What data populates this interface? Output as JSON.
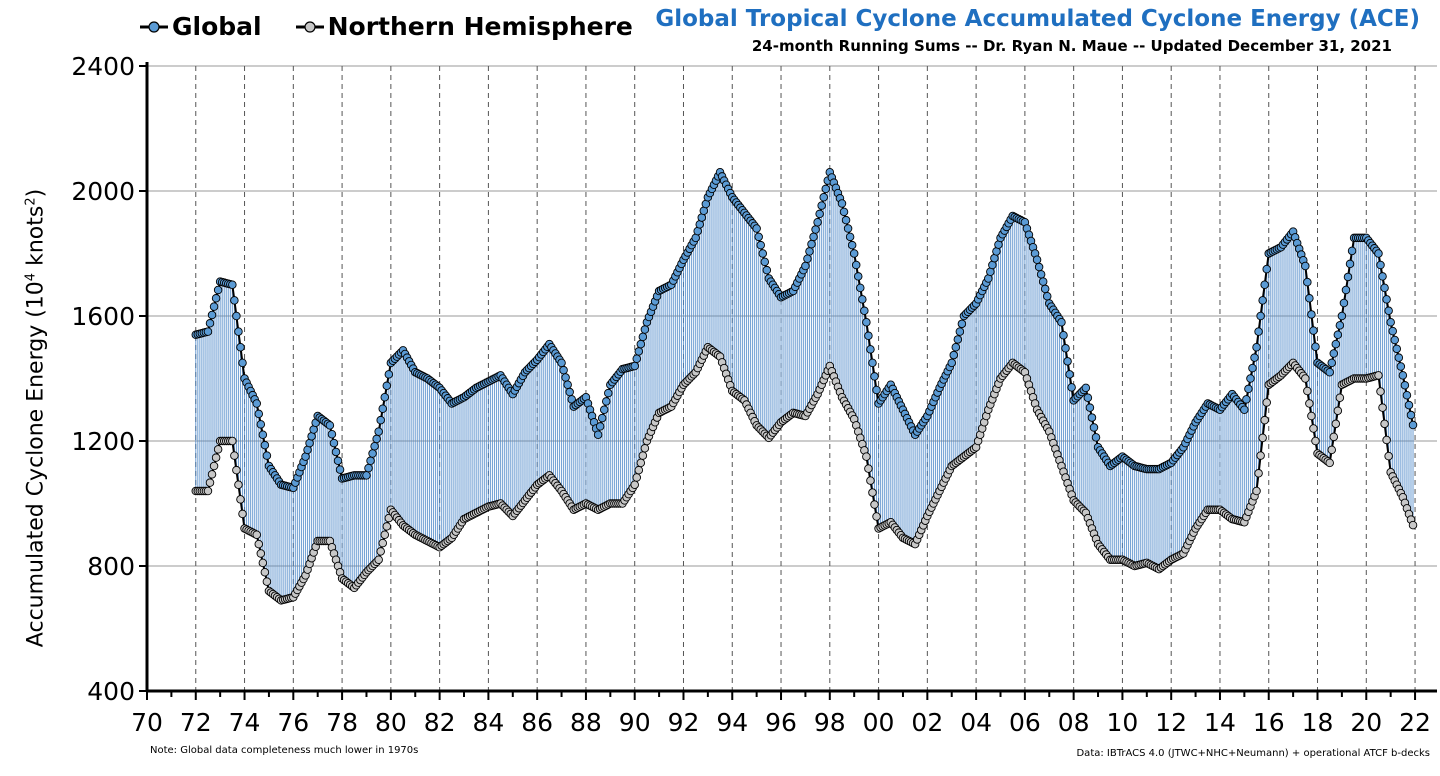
{
  "chart_data": {
    "type": "line",
    "title": "Global Tropical Cyclone Accumulated Cyclone Energy (ACE)",
    "subtitle": "24-month Running Sums -- Dr. Ryan N. Maue -- Updated December 31, 2021",
    "ylabel": "Accumulated Cyclone Energy (10",
    "ylabel_sup": "4",
    "ylabel_unit": " knots",
    "ylabel_sup2": "2",
    "ylabel_close": ")",
    "ylim": [
      400,
      2400
    ],
    "yticks": [
      "400",
      "800",
      "1200",
      "1600",
      "2000",
      "2400"
    ],
    "xlim": [
      1970,
      2022.9
    ],
    "xticks": [
      "70",
      "72",
      "74",
      "76",
      "78",
      "80",
      "82",
      "84",
      "86",
      "88",
      "90",
      "92",
      "94",
      "96",
      "98",
      "00",
      "02",
      "04",
      "06",
      "08",
      "10",
      "12",
      "14",
      "16",
      "18",
      "20",
      "22"
    ],
    "grid": true,
    "legend_position": "top-left",
    "note": "Note:  Global data completeness much lower in 1970s",
    "source": "Data: IBTrACS 4.0 (JTWC+NHC+Neumann) + operational ATCF b-decks",
    "colors": {
      "global": "#5b9bd5",
      "nh": "#c8c8c8",
      "fill": "#4a86c8"
    },
    "series": [
      {
        "name": "Global",
        "x": [
          1972.0,
          1972.5,
          1973.0,
          1973.5,
          1974.0,
          1974.5,
          1975.0,
          1975.5,
          1976.0,
          1976.5,
          1977.0,
          1977.5,
          1978.0,
          1978.5,
          1979.0,
          1979.5,
          1980.0,
          1980.5,
          1981.0,
          1981.5,
          1982.0,
          1982.5,
          1983.0,
          1983.5,
          1984.0,
          1984.5,
          1985.0,
          1985.5,
          1986.0,
          1986.5,
          1987.0,
          1987.5,
          1988.0,
          1988.5,
          1989.0,
          1989.5,
          1990.0,
          1990.5,
          1991.0,
          1991.5,
          1992.0,
          1992.5,
          1993.0,
          1993.5,
          1994.0,
          1994.5,
          1995.0,
          1995.5,
          1996.0,
          1996.5,
          1997.0,
          1997.5,
          1998.0,
          1998.5,
          1999.0,
          1999.5,
          2000.0,
          2000.5,
          2001.0,
          2001.5,
          2002.0,
          2002.5,
          2003.0,
          2003.5,
          2004.0,
          2004.5,
          2005.0,
          2005.5,
          2006.0,
          2006.5,
          2007.0,
          2007.5,
          2008.0,
          2008.5,
          2009.0,
          2009.5,
          2010.0,
          2010.5,
          2011.0,
          2011.5,
          2012.0,
          2012.5,
          2013.0,
          2013.5,
          2014.0,
          2014.5,
          2015.0,
          2015.5,
          2016.0,
          2016.5,
          2017.0,
          2017.5,
          2018.0,
          2018.5,
          2019.0,
          2019.5,
          2020.0,
          2020.5,
          2021.0,
          2021.5,
          2021.92
        ],
        "values": [
          1540,
          1550,
          1710,
          1700,
          1400,
          1320,
          1120,
          1060,
          1050,
          1150,
          1280,
          1250,
          1080,
          1090,
          1090,
          1230,
          1450,
          1490,
          1420,
          1400,
          1370,
          1320,
          1340,
          1370,
          1390,
          1410,
          1350,
          1420,
          1460,
          1510,
          1450,
          1310,
          1340,
          1220,
          1380,
          1430,
          1440,
          1580,
          1680,
          1700,
          1780,
          1850,
          1980,
          2060,
          1980,
          1930,
          1880,
          1720,
          1660,
          1680,
          1760,
          1900,
          2060,
          1960,
          1800,
          1580,
          1320,
          1380,
          1300,
          1220,
          1280,
          1370,
          1450,
          1600,
          1640,
          1720,
          1850,
          1920,
          1900,
          1780,
          1640,
          1580,
          1330,
          1370,
          1180,
          1120,
          1150,
          1120,
          1110,
          1110,
          1130,
          1180,
          1260,
          1320,
          1300,
          1350,
          1300,
          1500,
          1800,
          1820,
          1870,
          1760,
          1450,
          1420,
          1600,
          1850,
          1850,
          1800,
          1580,
          1410,
          1250
        ]
      },
      {
        "name": "Northern Hemisphere",
        "x": [
          1972.0,
          1972.5,
          1973.0,
          1973.5,
          1974.0,
          1974.5,
          1975.0,
          1975.5,
          1976.0,
          1976.5,
          1977.0,
          1977.5,
          1978.0,
          1978.5,
          1979.0,
          1979.5,
          1980.0,
          1980.5,
          1981.0,
          1981.5,
          1982.0,
          1982.5,
          1983.0,
          1983.5,
          1984.0,
          1984.5,
          1985.0,
          1985.5,
          1986.0,
          1986.5,
          1987.0,
          1987.5,
          1988.0,
          1988.5,
          1989.0,
          1989.5,
          1990.0,
          1990.5,
          1991.0,
          1991.5,
          1992.0,
          1992.5,
          1993.0,
          1993.5,
          1994.0,
          1994.5,
          1995.0,
          1995.5,
          1996.0,
          1996.5,
          1997.0,
          1997.5,
          1998.0,
          1998.5,
          1999.0,
          1999.5,
          2000.0,
          2000.5,
          2001.0,
          2001.5,
          2002.0,
          2002.5,
          2003.0,
          2003.5,
          2004.0,
          2004.5,
          2005.0,
          2005.5,
          2006.0,
          2006.5,
          2007.0,
          2007.5,
          2008.0,
          2008.5,
          2009.0,
          2009.5,
          2010.0,
          2010.5,
          2011.0,
          2011.5,
          2012.0,
          2012.5,
          2013.0,
          2013.5,
          2014.0,
          2014.5,
          2015.0,
          2015.5,
          2016.0,
          2016.5,
          2017.0,
          2017.5,
          2018.0,
          2018.5,
          2019.0,
          2019.5,
          2020.0,
          2020.5,
          2021.0,
          2021.5,
          2021.92
        ],
        "values": [
          1040,
          1040,
          1200,
          1200,
          920,
          900,
          720,
          690,
          700,
          770,
          880,
          880,
          760,
          730,
          780,
          820,
          980,
          930,
          900,
          880,
          860,
          890,
          950,
          970,
          990,
          1000,
          960,
          1010,
          1060,
          1090,
          1040,
          980,
          1000,
          980,
          1000,
          1000,
          1060,
          1200,
          1290,
          1310,
          1380,
          1420,
          1500,
          1470,
          1360,
          1330,
          1250,
          1210,
          1260,
          1290,
          1280,
          1350,
          1440,
          1340,
          1270,
          1150,
          920,
          940,
          890,
          870,
          960,
          1040,
          1120,
          1150,
          1180,
          1300,
          1400,
          1450,
          1420,
          1300,
          1230,
          1120,
          1010,
          970,
          870,
          820,
          820,
          800,
          810,
          790,
          820,
          840,
          920,
          980,
          980,
          950,
          940,
          1040,
          1380,
          1410,
          1450,
          1400,
          1160,
          1130,
          1380,
          1400,
          1400,
          1410,
          1100,
          1020,
          930
        ]
      }
    ]
  }
}
